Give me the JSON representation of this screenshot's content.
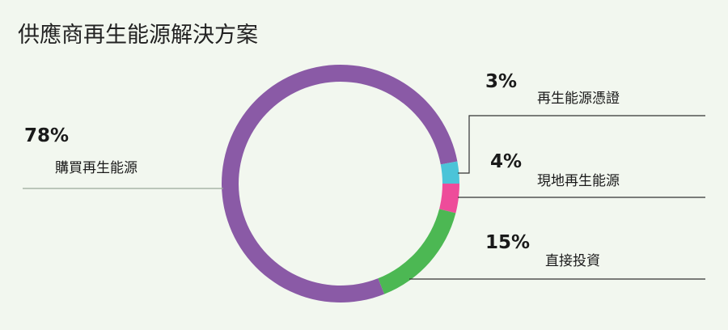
{
  "chart_data": {
    "type": "pie",
    "title": "供應商再生能源解決方案",
    "categories": [
      "購買再生能源",
      "直接投資",
      "現地再生能源",
      "再生能源憑證"
    ],
    "values": [
      78,
      15,
      4,
      3
    ],
    "labels": [
      "78%",
      "15%",
      "4%",
      "3%"
    ],
    "colors": [
      "#8a5aa6",
      "#4cb853",
      "#ee4c9a",
      "#4bc4d8"
    ]
  }
}
